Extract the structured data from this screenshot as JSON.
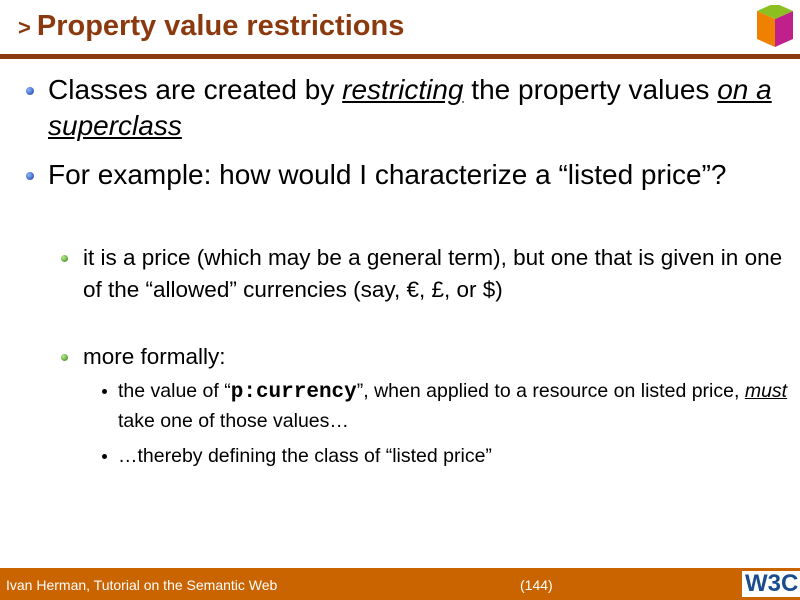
{
  "header": {
    "prefix": ">",
    "title": "Property value restrictions"
  },
  "body": {
    "b1": {
      "t1": "Classes are created by ",
      "u1": "restricting",
      "t2": " the property values ",
      "u2": "on a superclass"
    },
    "b2": {
      "text": "For example: how would I characterize a “listed price”?"
    },
    "b2a": {
      "text": "it is a price (which may be a general term), but one that is given in one of the “allowed” currencies (say, €, £, or $)"
    },
    "b2b": {
      "text": "more formally:"
    },
    "b3a": {
      "t1": "the value of “",
      "code": "p:currency",
      "t2": "”, when applied to a resource on listed price, ",
      "u": "must",
      "t3": " take one of those values…"
    },
    "b3b": {
      "text": "…thereby defining the class of “listed price”"
    }
  },
  "footer": {
    "author": "Ivan Herman, Tutorial on the Semantic Web",
    "page": "(144)",
    "logo": "W3C"
  },
  "colors": {
    "title": "#8b3a0f",
    "footer": "#c96400"
  }
}
